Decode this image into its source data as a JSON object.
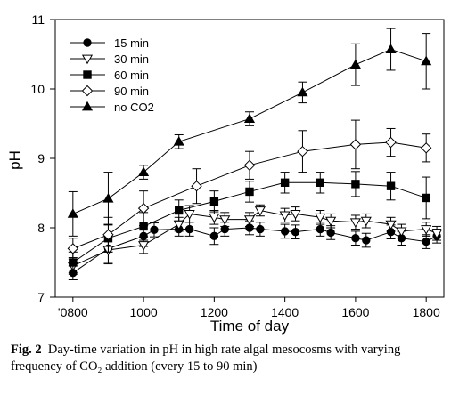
{
  "chart_data": {
    "type": "line",
    "xlabel": "Time of day",
    "ylabel": "pH",
    "xlim": [
      750,
      1850
    ],
    "ylim": [
      7,
      11
    ],
    "x_ticks": [
      800,
      1000,
      1200,
      1400,
      1600,
      1800
    ],
    "x_tick_labels": [
      "'0800",
      "1000",
      "1200",
      "1400",
      "1600",
      "1800"
    ],
    "y_ticks": [
      7,
      8,
      9,
      10,
      11
    ],
    "y_tick_labels": [
      "7",
      "8",
      "9",
      "10",
      "11"
    ],
    "grid": false,
    "legend_position": "top-left",
    "series": [
      {
        "name": "15 min",
        "marker": "circle-filled",
        "x": [
          800,
          900,
          1000,
          1030,
          1100,
          1130,
          1200,
          1230,
          1300,
          1330,
          1400,
          1430,
          1500,
          1530,
          1600,
          1630,
          1700,
          1730,
          1800,
          1830
        ],
        "y": [
          7.35,
          7.7,
          7.88,
          7.97,
          7.98,
          7.98,
          7.88,
          7.98,
          8.0,
          7.98,
          7.95,
          7.94,
          7.98,
          7.93,
          7.85,
          7.82,
          7.94,
          7.85,
          7.8,
          7.88
        ],
        "err": [
          0.1,
          0.2,
          0.15,
          0.1,
          0.1,
          0.1,
          0.12,
          0.1,
          0.1,
          0.1,
          0.1,
          0.1,
          0.1,
          0.1,
          0.1,
          0.1,
          0.1,
          0.1,
          0.1,
          0.1
        ]
      },
      {
        "name": "30 min",
        "marker": "triangle-down-open",
        "x": [
          800,
          900,
          1000,
          1100,
          1130,
          1200,
          1230,
          1300,
          1330,
          1400,
          1430,
          1500,
          1530,
          1600,
          1630,
          1700,
          1730,
          1800,
          1830
        ],
        "y": [
          7.45,
          7.68,
          7.75,
          8.05,
          8.2,
          8.15,
          8.12,
          8.12,
          8.25,
          8.18,
          8.2,
          8.15,
          8.1,
          8.08,
          8.1,
          8.05,
          7.95,
          7.98,
          7.92
        ],
        "err": [
          0.12,
          0.2,
          0.12,
          0.1,
          0.12,
          0.1,
          0.1,
          0.1,
          0.08,
          0.1,
          0.1,
          0.1,
          0.1,
          0.1,
          0.1,
          0.1,
          0.1,
          0.1,
          0.1
        ]
      },
      {
        "name": "60 min",
        "marker": "square-filled",
        "x": [
          800,
          900,
          1000,
          1100,
          1200,
          1300,
          1400,
          1500,
          1600,
          1700,
          1800
        ],
        "y": [
          7.5,
          7.85,
          8.02,
          8.25,
          8.38,
          8.52,
          8.65,
          8.65,
          8.63,
          8.6,
          8.43
        ],
        "err": [
          0.15,
          0.2,
          0.2,
          0.15,
          0.15,
          0.15,
          0.15,
          0.15,
          0.18,
          0.2,
          0.3
        ]
      },
      {
        "name": "90 min",
        "marker": "diamond-open",
        "x": [
          800,
          900,
          1000,
          1150,
          1300,
          1450,
          1600,
          1700,
          1800
        ],
        "y": [
          7.7,
          7.9,
          8.28,
          8.6,
          8.9,
          9.1,
          9.2,
          9.23,
          9.15
        ],
        "err": [
          0.15,
          0.25,
          0.25,
          0.25,
          0.2,
          0.3,
          0.35,
          0.2,
          0.2
        ]
      },
      {
        "name": "no CO2",
        "marker": "triangle-up-filled",
        "x": [
          800,
          900,
          1000,
          1100,
          1300,
          1450,
          1600,
          1700,
          1800
        ],
        "y": [
          8.2,
          8.42,
          8.8,
          9.24,
          9.57,
          9.95,
          10.35,
          10.57,
          10.4
        ],
        "err": [
          0.32,
          0.38,
          0.1,
          0.1,
          0.1,
          0.15,
          0.3,
          0.3,
          0.4
        ]
      }
    ]
  },
  "caption": {
    "label": "Fig. 2",
    "text": "Day-time variation in pH in high rate algal mesocosms with varying frequency of CO₂ addition (every 15 to 90 min)"
  }
}
